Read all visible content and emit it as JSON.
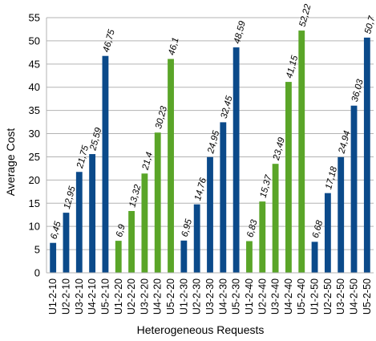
{
  "chart_data": {
    "type": "bar",
    "title": "",
    "xlabel": "Heterogeneous Requests",
    "ylabel": "Average Cost",
    "ylim": [
      0,
      55
    ],
    "yticks": [
      0,
      5,
      10,
      15,
      20,
      25,
      30,
      35,
      40,
      45,
      50,
      55
    ],
    "grid": "horizontal",
    "legend": "none",
    "colors": {
      "blue": "#0b4a8a",
      "green": "#5aa528",
      "grid": "#b3b3b3"
    },
    "bars": [
      {
        "category": "U1-2-10",
        "value": 6.45,
        "label": "6,45",
        "color": "blue"
      },
      {
        "category": "U2-2-10",
        "value": 12.95,
        "label": "12,95",
        "color": "blue"
      },
      {
        "category": "U3-2-10",
        "value": 21.75,
        "label": "21,75",
        "color": "blue"
      },
      {
        "category": "U4-2-10",
        "value": 25.59,
        "label": "25,59",
        "color": "blue"
      },
      {
        "category": "U5-2-10",
        "value": 46.75,
        "label": "46,75",
        "color": "blue"
      },
      {
        "category": "U1-2-20",
        "value": 6.9,
        "label": "6,9",
        "color": "green"
      },
      {
        "category": "U2-2-20",
        "value": 13.32,
        "label": "13,32",
        "color": "green"
      },
      {
        "category": "U3-2-20",
        "value": 21.4,
        "label": "21,4",
        "color": "green"
      },
      {
        "category": "U4-2-20",
        "value": 30.23,
        "label": "30,23",
        "color": "green"
      },
      {
        "category": "U5-2-20",
        "value": 46.1,
        "label": "46,1",
        "color": "green"
      },
      {
        "category": "U1-2-30",
        "value": 6.95,
        "label": "6,95",
        "color": "blue"
      },
      {
        "category": "U2-2-30",
        "value": 14.76,
        "label": "14,76",
        "color": "blue"
      },
      {
        "category": "U3-2-30",
        "value": 24.95,
        "label": "24,95",
        "color": "blue"
      },
      {
        "category": "U4-2-30",
        "value": 32.45,
        "label": "32,45",
        "color": "blue"
      },
      {
        "category": "U5-2-30",
        "value": 48.59,
        "label": "48,59",
        "color": "blue"
      },
      {
        "category": "U1-2-40",
        "value": 6.83,
        "label": "6,83",
        "color": "green"
      },
      {
        "category": "U2-2-40",
        "value": 15.37,
        "label": "15,37",
        "color": "green"
      },
      {
        "category": "U3-2-40",
        "value": 23.49,
        "label": "23,49",
        "color": "green"
      },
      {
        "category": "U4-2-40",
        "value": 41.15,
        "label": "41,15",
        "color": "green"
      },
      {
        "category": "U5-2-40",
        "value": 52.22,
        "label": "52,22",
        "color": "green"
      },
      {
        "category": "U1-2-50",
        "value": 6.68,
        "label": "6,68",
        "color": "blue"
      },
      {
        "category": "U2-2-50",
        "value": 17.18,
        "label": "17,18",
        "color": "blue"
      },
      {
        "category": "U3-2-50",
        "value": 24.94,
        "label": "24,94",
        "color": "blue"
      },
      {
        "category": "U4-2-50",
        "value": 36.03,
        "label": "36,03",
        "color": "blue"
      },
      {
        "category": "U5-2-50",
        "value": 50.7,
        "label": "50,7",
        "color": "blue"
      }
    ]
  }
}
